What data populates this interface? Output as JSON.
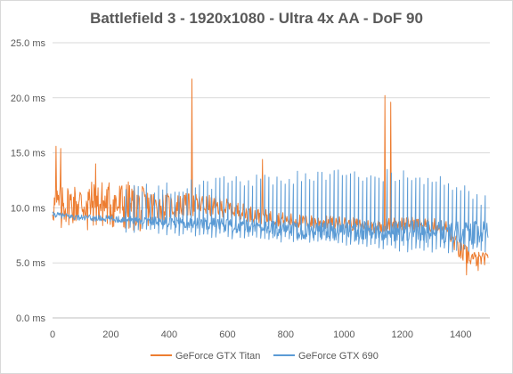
{
  "chart_data": {
    "type": "line",
    "title": "Battlefield 3 - 1920x1080 - Ultra 4x AA - DoF 90",
    "xlabel": "",
    "ylabel": "",
    "xlim": [
      0,
      1500
    ],
    "ylim": [
      0,
      25
    ],
    "x_ticks": [
      "0",
      "200",
      "400",
      "600",
      "800",
      "1000",
      "1200",
      "1400"
    ],
    "y_ticks": [
      "0.0 ms",
      "5.0 ms",
      "10.0 ms",
      "15.0 ms",
      "20.0 ms",
      "25.0 ms"
    ],
    "grid": "horizontal",
    "legend_position": "bottom",
    "series": [
      {
        "name": "GeForce GTX Titan",
        "color": "#ed7d31",
        "keypoints": [
          [
            0,
            10.2
          ],
          [
            100,
            10.4
          ],
          [
            200,
            10.3
          ],
          [
            300,
            10.0
          ],
          [
            400,
            10.1
          ],
          [
            500,
            10.3
          ],
          [
            600,
            10.0
          ],
          [
            700,
            9.3
          ],
          [
            800,
            8.9
          ],
          [
            900,
            8.7
          ],
          [
            1000,
            8.6
          ],
          [
            1100,
            8.3
          ],
          [
            1200,
            8.6
          ],
          [
            1300,
            8.4
          ],
          [
            1350,
            8.2
          ],
          [
            1400,
            6.0
          ],
          [
            1450,
            5.3
          ],
          [
            1495,
            5.4
          ]
        ],
        "noise": [
          [
            0,
            1.8
          ],
          [
            250,
            2.4
          ],
          [
            400,
            1.2
          ],
          [
            700,
            0.7
          ],
          [
            1000,
            0.6
          ],
          [
            1350,
            0.7
          ],
          [
            1400,
            1.0
          ],
          [
            1495,
            0.5
          ]
        ],
        "spikes": [
          [
            12,
            15.6
          ],
          [
            28,
            15.4
          ],
          [
            75,
            16.3
          ],
          [
            148,
            14.0
          ],
          [
            195,
            13.6
          ],
          [
            425,
            21.2
          ],
          [
            478,
            21.7
          ],
          [
            720,
            14.4
          ],
          [
            1140,
            20.2
          ],
          [
            1160,
            19.6
          ],
          [
            1175,
            18.3
          ],
          [
            1205,
            11.2
          ]
        ],
        "dips": [
          [
            30,
            8.2
          ],
          [
            120,
            8.0
          ],
          [
            300,
            7.9
          ],
          [
            1160,
            5.1
          ],
          [
            1420,
            3.9
          ],
          [
            1460,
            4.3
          ]
        ]
      },
      {
        "name": "GeForce GTX 690",
        "color": "#5b9bd5",
        "keypoints": [
          [
            0,
            9.4
          ],
          [
            100,
            9.1
          ],
          [
            200,
            9.0
          ],
          [
            300,
            8.9
          ],
          [
            400,
            8.7
          ],
          [
            500,
            8.6
          ],
          [
            600,
            8.4
          ],
          [
            700,
            8.3
          ],
          [
            800,
            8.0
          ],
          [
            900,
            7.9
          ],
          [
            1000,
            7.9
          ],
          [
            1100,
            7.9
          ],
          [
            1200,
            7.9
          ],
          [
            1300,
            7.8
          ],
          [
            1400,
            7.8
          ],
          [
            1495,
            7.6
          ]
        ],
        "noise": [
          [
            0,
            0.4
          ],
          [
            300,
            0.6
          ],
          [
            600,
            1.0
          ],
          [
            1000,
            1.4
          ],
          [
            1200,
            1.6
          ],
          [
            1400,
            1.8
          ],
          [
            1495,
            2.0
          ]
        ],
        "spike_top": [
          [
            0,
            11.4
          ],
          [
            300,
            12.1
          ],
          [
            600,
            13.0
          ],
          [
            1000,
            13.6
          ],
          [
            1200,
            13.5
          ],
          [
            1400,
            12.5
          ],
          [
            1495,
            11.0
          ]
        ],
        "spike_bottom": [
          [
            0,
            8.2
          ],
          [
            300,
            7.7
          ],
          [
            600,
            7.2
          ],
          [
            1000,
            6.5
          ],
          [
            1200,
            6.0
          ],
          [
            1400,
            5.8
          ],
          [
            1495,
            6.0
          ]
        ],
        "spike_start": 250,
        "spike_period": 14
      }
    ]
  }
}
